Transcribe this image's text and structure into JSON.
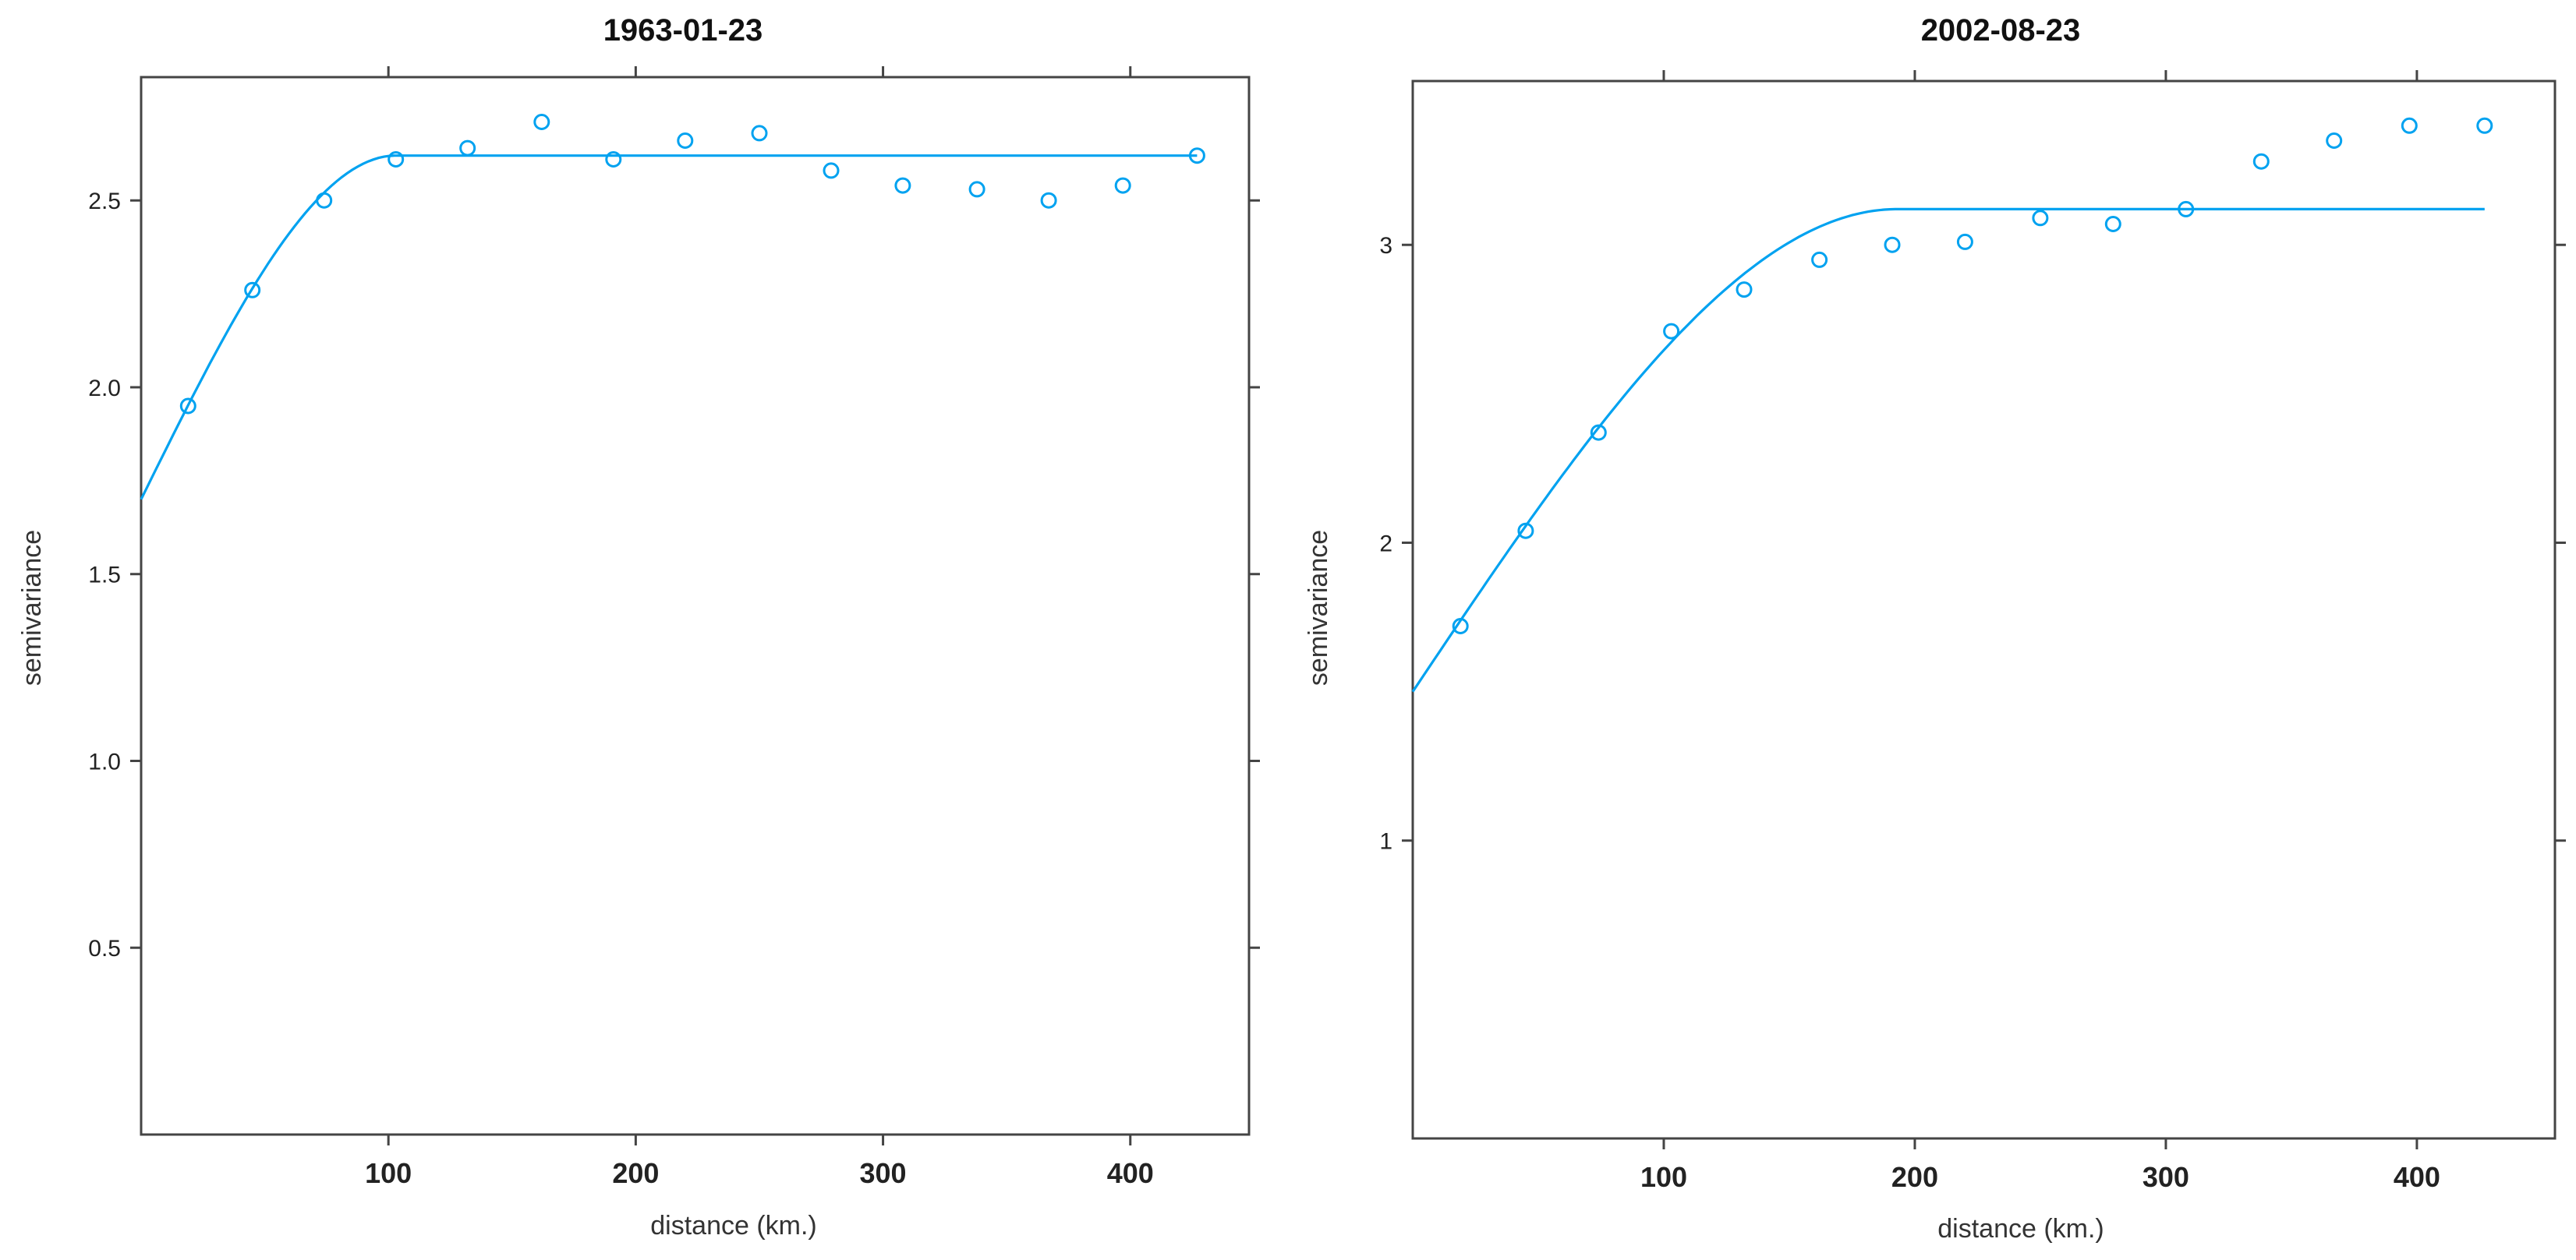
{
  "style": {
    "series_color": "#00a2f0",
    "axis_color": "#444444"
  },
  "chart_data": [
    {
      "type": "scatter",
      "title": "1963-01-23",
      "xlabel": "distance (km.)",
      "ylabel": "semivariance",
      "xlim": [
        0,
        448
      ],
      "ylim": [
        0,
        2.83
      ],
      "xticks": [
        100,
        200,
        300,
        400
      ],
      "yticks": [
        0.5,
        1.0,
        1.5,
        2.0,
        2.5
      ],
      "ytick_labels": [
        "0.5",
        "1.0",
        "1.5",
        "2.0",
        "2.5"
      ],
      "grid": false,
      "series": [
        {
          "kind": "points",
          "x": [
            19,
            45,
            74,
            103,
            132,
            162,
            191,
            220,
            250,
            279,
            308,
            338,
            367,
            397,
            427
          ],
          "y": [
            1.95,
            2.26,
            2.5,
            2.61,
            2.64,
            2.71,
            2.61,
            2.66,
            2.68,
            2.58,
            2.54,
            2.53,
            2.5,
            2.54,
            2.62
          ]
        },
        {
          "kind": "fitted-line",
          "model": "spherical",
          "nugget": 1.7,
          "sill": 2.62,
          "range": 103
        }
      ]
    },
    {
      "type": "scatter",
      "title": "2002-08-23",
      "xlabel": "distance (km.)",
      "ylabel": "semivariance",
      "xlim": [
        0,
        455
      ],
      "ylim": [
        0,
        3.55
      ],
      "xticks": [
        100,
        200,
        300,
        400
      ],
      "yticks": [
        1,
        2,
        3
      ],
      "ytick_labels": [
        "1",
        "2",
        "3"
      ],
      "grid": false,
      "series": [
        {
          "kind": "points",
          "x": [
            19,
            45,
            74,
            103,
            132,
            162,
            191,
            220,
            250,
            279,
            308,
            338,
            367,
            397,
            427
          ],
          "y": [
            1.72,
            2.04,
            2.37,
            2.71,
            2.85,
            2.95,
            3.0,
            3.01,
            3.09,
            3.07,
            3.12,
            3.28,
            3.35,
            3.4,
            3.4
          ]
        },
        {
          "kind": "fitted-line",
          "model": "spherical",
          "nugget": 1.5,
          "sill": 3.12,
          "range": 193
        }
      ]
    }
  ]
}
